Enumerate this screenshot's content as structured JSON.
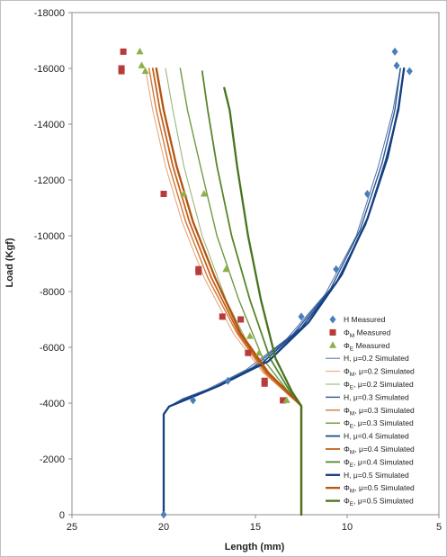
{
  "chart_data": {
    "type": "scatter",
    "xlabel": "Length (mm)",
    "ylabel": "Load (Kgf)",
    "xlim": [
      25,
      5
    ],
    "ylim": [
      0,
      -18000
    ],
    "x_ticks": [
      25,
      20,
      15,
      10,
      5
    ],
    "y_ticks": [
      0,
      -2000,
      -4000,
      -6000,
      -8000,
      -10000,
      -12000,
      -14000,
      -16000,
      -18000
    ],
    "grid": false,
    "legend_position": "bottom-right",
    "measured": [
      {
        "name": "H Measured",
        "marker": "diamond",
        "color": "#4A7EBB",
        "points": [
          [
            20,
            0
          ],
          [
            18.4,
            -4100
          ],
          [
            16.5,
            -4800
          ],
          [
            12.5,
            -7100
          ],
          [
            10.6,
            -8800
          ],
          [
            8.9,
            -11500
          ],
          [
            7.3,
            -16100
          ],
          [
            6.6,
            -15900
          ],
          [
            7.4,
            -16600
          ]
        ]
      },
      {
        "name": "ΦM Measured",
        "name_main": "Φ",
        "name_sub": "M",
        "name_rest": " Measured",
        "marker": "square",
        "color": "#B83B3B",
        "points": [
          [
            22.3,
            -15900
          ],
          [
            22.3,
            -16000
          ],
          [
            22.2,
            -16600
          ],
          [
            20,
            -11500
          ],
          [
            18.1,
            -8700
          ],
          [
            18.1,
            -8800
          ],
          [
            16.8,
            -7100
          ],
          [
            15.8,
            -7000
          ],
          [
            15.4,
            -5800
          ],
          [
            14.5,
            -4700
          ],
          [
            14.5,
            -4800
          ],
          [
            13.5,
            -4100
          ]
        ]
      },
      {
        "name": "ΦE Measured",
        "name_main": "Φ",
        "name_sub": "E",
        "name_rest": " Measured",
        "marker": "triangle",
        "color": "#8DB04A",
        "points": [
          [
            21.3,
            -16600
          ],
          [
            21.2,
            -16100
          ],
          [
            21,
            -15900
          ],
          [
            18.9,
            -11500
          ],
          [
            17.8,
            -11500
          ],
          [
            16.6,
            -8800
          ],
          [
            15.3,
            -6400
          ],
          [
            14.8,
            -5800
          ],
          [
            13.3,
            -4100
          ]
        ]
      }
    ],
    "simulated": [
      {
        "name": "H, μ=0.2 Simulated",
        "name_main": "H",
        "name_sub": "",
        "name_rest": ", μ=0.2 Simulated",
        "color": "#4F6FA8",
        "width": 1.0,
        "points": [
          [
            20,
            0
          ],
          [
            20,
            -3600
          ],
          [
            19.7,
            -3880
          ],
          [
            19,
            -4150
          ],
          [
            17.6,
            -4500
          ],
          [
            15.5,
            -5200
          ],
          [
            13.3,
            -6300
          ],
          [
            11.2,
            -7900
          ],
          [
            9.5,
            -10000
          ],
          [
            8.3,
            -12500
          ],
          [
            7.5,
            -14500
          ],
          [
            7.1,
            -16000
          ]
        ]
      },
      {
        "name": "ΦM, μ=0.2 Simulated",
        "name_main": "Φ",
        "name_sub": "M",
        "name_rest": ", μ=0.2 Simulated",
        "color": "#E8A070",
        "width": 1.0,
        "points": [
          [
            12.5,
            0
          ],
          [
            12.5,
            -3900
          ],
          [
            13.2,
            -4300
          ],
          [
            14.6,
            -5100
          ],
          [
            16.2,
            -6500
          ],
          [
            17.8,
            -8500
          ],
          [
            19,
            -10500
          ],
          [
            19.9,
            -12500
          ],
          [
            20.6,
            -14500
          ],
          [
            21,
            -16000
          ]
        ]
      },
      {
        "name": "ΦE, μ=0.2 Simulated",
        "name_main": "Φ",
        "name_sub": "E",
        "name_rest": ", μ=0.2 Simulated",
        "color": "#8FB070",
        "width": 1.0,
        "points": [
          [
            12.5,
            0
          ],
          [
            12.5,
            -3900
          ],
          [
            13.3,
            -4400
          ],
          [
            15,
            -5600
          ],
          [
            16.6,
            -7700
          ],
          [
            17.9,
            -10000
          ],
          [
            18.9,
            -12500
          ],
          [
            19.5,
            -14500
          ],
          [
            19.9,
            -16000
          ]
        ]
      },
      {
        "name": "H, μ=0.3 Simulated",
        "name_main": "H",
        "name_sub": "",
        "name_rest": ", μ=0.3 Simulated",
        "color": "#2E5896",
        "width": 1.4,
        "points": [
          [
            20,
            0
          ],
          [
            20,
            -3600
          ],
          [
            19.7,
            -3880
          ],
          [
            18.9,
            -4150
          ],
          [
            17.3,
            -4550
          ],
          [
            15.1,
            -5300
          ],
          [
            12.9,
            -6500
          ],
          [
            10.9,
            -8100
          ],
          [
            9.3,
            -10200
          ],
          [
            8.1,
            -12600
          ],
          [
            7.4,
            -14500
          ],
          [
            7.1,
            -16000
          ]
        ]
      },
      {
        "name": "ΦM, μ=0.3 Simulated",
        "name_main": "Φ",
        "name_sub": "M",
        "name_rest": ", μ=0.3 Simulated",
        "color": "#D27A3A",
        "width": 1.4,
        "points": [
          [
            12.5,
            0
          ],
          [
            12.5,
            -3900
          ],
          [
            13.2,
            -4300
          ],
          [
            14.5,
            -5100
          ],
          [
            16,
            -6500
          ],
          [
            17.6,
            -8500
          ],
          [
            18.8,
            -10500
          ],
          [
            19.7,
            -12500
          ],
          [
            20.4,
            -14500
          ],
          [
            20.8,
            -16000
          ]
        ]
      },
      {
        "name": "ΦE, μ=0.3 Simulated",
        "name_main": "Φ",
        "name_sub": "E",
        "name_rest": ", μ=0.3 Simulated",
        "color": "#6E9A42",
        "width": 1.4,
        "points": [
          [
            12.5,
            0
          ],
          [
            12.5,
            -3900
          ],
          [
            13.2,
            -4400
          ],
          [
            14.6,
            -5600
          ],
          [
            15.9,
            -7700
          ],
          [
            17.1,
            -10000
          ],
          [
            18,
            -12500
          ],
          [
            18.7,
            -14500
          ],
          [
            19.1,
            -16000
          ]
        ]
      },
      {
        "name": "H, μ=0.4 Simulated",
        "name_main": "H",
        "name_sub": "",
        "name_rest": ", μ=0.4 Simulated",
        "color": "#1F4C8F",
        "width": 1.8,
        "points": [
          [
            20,
            0
          ],
          [
            20,
            -3600
          ],
          [
            19.7,
            -3880
          ],
          [
            18.8,
            -4150
          ],
          [
            17.1,
            -4600
          ],
          [
            14.7,
            -5400
          ],
          [
            12.5,
            -6700
          ],
          [
            10.6,
            -8300
          ],
          [
            9,
            -10400
          ],
          [
            7.9,
            -12700
          ],
          [
            7.2,
            -14500
          ],
          [
            6.9,
            -16000
          ]
        ]
      },
      {
        "name": "ΦM, μ=0.4 Simulated",
        "name_main": "Φ",
        "name_sub": "M",
        "name_rest": ", μ=0.4 Simulated",
        "color": "#C4621C",
        "width": 1.8,
        "points": [
          [
            12.5,
            0
          ],
          [
            12.5,
            -3900
          ],
          [
            13.1,
            -4300
          ],
          [
            14.4,
            -5100
          ],
          [
            15.9,
            -6500
          ],
          [
            17.4,
            -8500
          ],
          [
            18.6,
            -10500
          ],
          [
            19.5,
            -12500
          ],
          [
            20.2,
            -14500
          ],
          [
            20.6,
            -16000
          ]
        ]
      },
      {
        "name": "ΦE, μ=0.4 Simulated",
        "name_main": "Φ",
        "name_sub": "E",
        "name_rest": ", μ=0.4 Simulated",
        "color": "#57862A",
        "width": 1.8,
        "points": [
          [
            12.5,
            0
          ],
          [
            12.5,
            -3900
          ],
          [
            13.1,
            -4400
          ],
          [
            14.2,
            -5600
          ],
          [
            15.3,
            -7700
          ],
          [
            16.3,
            -10000
          ],
          [
            17.1,
            -12500
          ],
          [
            17.6,
            -14500
          ],
          [
            17.9,
            -15900
          ]
        ]
      },
      {
        "name": "H, μ=0.5 Simulated",
        "name_main": "H",
        "name_sub": "",
        "name_rest": ", μ=0.5 Simulated",
        "color": "#143F80",
        "width": 2.3,
        "points": [
          [
            20,
            0
          ],
          [
            20,
            -3600
          ],
          [
            19.7,
            -3880
          ],
          [
            18.7,
            -4150
          ],
          [
            16.9,
            -4650
          ],
          [
            14.3,
            -5500
          ],
          [
            12.1,
            -6900
          ],
          [
            10.3,
            -8600
          ],
          [
            8.9,
            -10600
          ],
          [
            7.8,
            -12800
          ],
          [
            7.2,
            -14600
          ],
          [
            6.9,
            -16000
          ]
        ]
      },
      {
        "name": "ΦM, μ=0.5 Simulated",
        "name_main": "Φ",
        "name_sub": "M",
        "name_rest": ", μ=0.5 Simulated",
        "color": "#B5540E",
        "width": 2.3,
        "points": [
          [
            12.5,
            0
          ],
          [
            12.5,
            -3900
          ],
          [
            13.1,
            -4300
          ],
          [
            14.3,
            -5100
          ],
          [
            15.8,
            -6500
          ],
          [
            17.2,
            -8500
          ],
          [
            18.4,
            -10500
          ],
          [
            19.3,
            -12500
          ],
          [
            20,
            -14500
          ],
          [
            20.4,
            -16000
          ]
        ]
      },
      {
        "name": "ΦE, μ=0.5 Simulated",
        "name_main": "Φ",
        "name_sub": "E",
        "name_rest": ", μ=0.5 Simulated",
        "color": "#48731E",
        "width": 2.3,
        "points": [
          [
            12.5,
            0
          ],
          [
            12.5,
            -3900
          ],
          [
            13,
            -4400
          ],
          [
            13.9,
            -5600
          ],
          [
            14.7,
            -7700
          ],
          [
            15.4,
            -10000
          ],
          [
            16,
            -12500
          ],
          [
            16.4,
            -14500
          ],
          [
            16.7,
            -15300
          ]
        ]
      }
    ]
  }
}
